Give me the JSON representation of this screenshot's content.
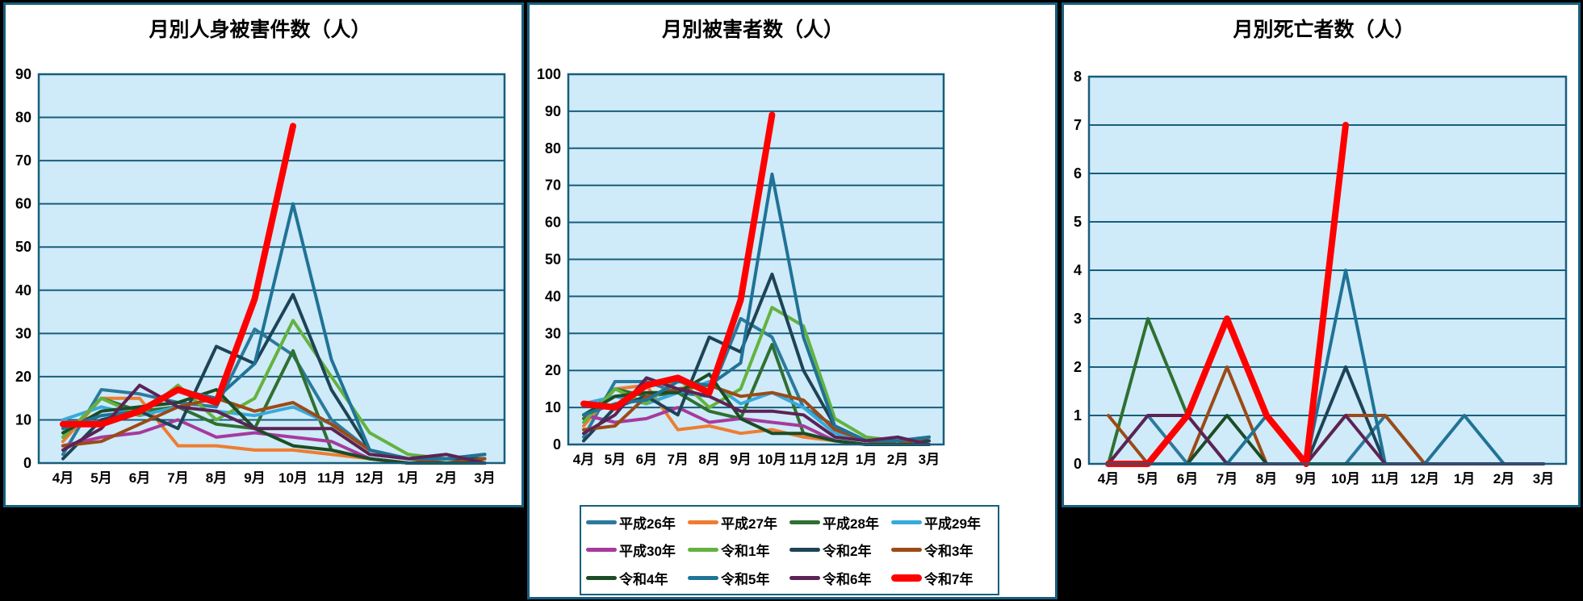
{
  "page": {
    "background_color": "#000000",
    "panel_color": "#FFFFFF",
    "panel_border_color": "#175E7C",
    "plot_background_color": "#CFEAF8",
    "gridline_color": "#175E7C"
  },
  "months": [
    "4月",
    "5月",
    "6月",
    "7月",
    "8月",
    "9月",
    "10月",
    "11月",
    "12月",
    "1月",
    "2月",
    "3月"
  ],
  "series_meta": [
    {
      "key": "h26",
      "label": "平成26年",
      "color": "#2B7A9D",
      "thick": false
    },
    {
      "key": "h27",
      "label": "平成27年",
      "color": "#ED7D31",
      "thick": false
    },
    {
      "key": "h28",
      "label": "平成28年",
      "color": "#2E7031",
      "thick": false
    },
    {
      "key": "h29",
      "label": "平成29年",
      "color": "#38A9DC",
      "thick": false
    },
    {
      "key": "h30",
      "label": "平成30年",
      "color": "#A63A9E",
      "thick": false
    },
    {
      "key": "r1",
      "label": "令和1年",
      "color": "#63B23F",
      "thick": false
    },
    {
      "key": "r2",
      "label": "令和2年",
      "color": "#1D4456",
      "thick": false
    },
    {
      "key": "r3",
      "label": "令和3年",
      "color": "#9C4A16",
      "thick": false
    },
    {
      "key": "r4",
      "label": "令和4年",
      "color": "#1C4C26",
      "thick": false
    },
    {
      "key": "r5",
      "label": "令和5年",
      "color": "#1F7396",
      "thick": false
    },
    {
      "key": "r6",
      "label": "令和6年",
      "color": "#5C2355",
      "thick": false
    },
    {
      "key": "r7",
      "label": "令和7年",
      "color": "#FF0000",
      "thick": true
    }
  ],
  "chart_data": [
    {
      "type": "line",
      "title": "月別人身被害件数（人）",
      "categories": [
        "4月",
        "5月",
        "6月",
        "7月",
        "8月",
        "9月",
        "10月",
        "11月",
        "12月",
        "1月",
        "2月",
        "3月"
      ],
      "ylim": [
        0,
        90
      ],
      "ystep": 10,
      "grid": true,
      "legend_position": "shared-bottom",
      "series": [
        {
          "name": "平成26年",
          "values": [
            2,
            17,
            16,
            14,
            13,
            31,
            25,
            10,
            3,
            1,
            1,
            2
          ]
        },
        {
          "name": "平成27年",
          "values": [
            5,
            15,
            15,
            4,
            4,
            3,
            3,
            2,
            1,
            0,
            0,
            0
          ]
        },
        {
          "name": "平成28年",
          "values": [
            6,
            15,
            12,
            13,
            9,
            8,
            26,
            3,
            1,
            0,
            0,
            0
          ]
        },
        {
          "name": "平成29年",
          "values": [
            10,
            13,
            11,
            13,
            12,
            11,
            13,
            9,
            3,
            1,
            0,
            1
          ]
        },
        {
          "name": "平成30年",
          "values": [
            4,
            6,
            7,
            10,
            6,
            7,
            6,
            5,
            1,
            0,
            0,
            0
          ]
        },
        {
          "name": "令和1年",
          "values": [
            6,
            15,
            11,
            18,
            10,
            15,
            33,
            20,
            7,
            2,
            1,
            1
          ]
        },
        {
          "name": "令和2年",
          "values": [
            1,
            10,
            12,
            8,
            27,
            23,
            39,
            17,
            3,
            1,
            1,
            1
          ]
        },
        {
          "name": "令和3年",
          "values": [
            4,
            5,
            9,
            13,
            15,
            12,
            14,
            9,
            3,
            1,
            0,
            1
          ]
        },
        {
          "name": "令和4年",
          "values": [
            7,
            12,
            13,
            14,
            17,
            8,
            4,
            3,
            1,
            0,
            0,
            0
          ]
        },
        {
          "name": "令和5年",
          "values": [
            8,
            11,
            12,
            17,
            15,
            23,
            60,
            24,
            3,
            1,
            1,
            2
          ]
        },
        {
          "name": "令和6年",
          "values": [
            3,
            8,
            18,
            13,
            12,
            8,
            8,
            8,
            2,
            1,
            2,
            0
          ]
        },
        {
          "name": "令和7年",
          "values": [
            9,
            9,
            12,
            17,
            14,
            38,
            78,
            null,
            null,
            null,
            null,
            null
          ]
        }
      ]
    },
    {
      "type": "line",
      "title": "月別被害者数（人）",
      "categories": [
        "4月",
        "5月",
        "6月",
        "7月",
        "8月",
        "9月",
        "10月",
        "11月",
        "12月",
        "1月",
        "2月",
        "3月"
      ],
      "ylim": [
        0,
        100
      ],
      "ystep": 10,
      "grid": true,
      "legend_position": "shared-bottom",
      "series": [
        {
          "name": "平成26年",
          "values": [
            2,
            17,
            17,
            14,
            13,
            34,
            29,
            10,
            5,
            1,
            1,
            2
          ]
        },
        {
          "name": "平成27年",
          "values": [
            5,
            15,
            16,
            4,
            5,
            3,
            4,
            2,
            1,
            0,
            0,
            1
          ]
        },
        {
          "name": "平成28年",
          "values": [
            7,
            15,
            13,
            14,
            9,
            7,
            27,
            3,
            1,
            0,
            0,
            0
          ]
        },
        {
          "name": "平成29年",
          "values": [
            11,
            13,
            11,
            14,
            17,
            11,
            14,
            10,
            3,
            1,
            0,
            1
          ]
        },
        {
          "name": "平成30年",
          "values": [
            8,
            6,
            7,
            10,
            6,
            7,
            6,
            5,
            1,
            0,
            0,
            0
          ]
        },
        {
          "name": "令和1年",
          "values": [
            6,
            15,
            11,
            18,
            10,
            15,
            37,
            32,
            7,
            2,
            1,
            1
          ]
        },
        {
          "name": "令和2年",
          "values": [
            1,
            10,
            13,
            8,
            29,
            25,
            46,
            20,
            5,
            1,
            1,
            1
          ]
        },
        {
          "name": "令和3年",
          "values": [
            4,
            5,
            13,
            15,
            16,
            13,
            14,
            12,
            4,
            1,
            0,
            2
          ]
        },
        {
          "name": "令和4年",
          "values": [
            8,
            13,
            14,
            14,
            19,
            7,
            3,
            3,
            1,
            0,
            0,
            0
          ]
        },
        {
          "name": "令和5年",
          "values": [
            8,
            11,
            12,
            17,
            16,
            22,
            73,
            29,
            5,
            1,
            1,
            2
          ]
        },
        {
          "name": "令和6年",
          "values": [
            3,
            8,
            18,
            15,
            13,
            9,
            9,
            8,
            2,
            1,
            2,
            0
          ]
        },
        {
          "name": "令和7年",
          "values": [
            11,
            10,
            16,
            18,
            14,
            39,
            89,
            null,
            null,
            null,
            null,
            null
          ]
        }
      ]
    },
    {
      "type": "line",
      "title": "月別死亡者数（人）",
      "categories": [
        "4月",
        "5月",
        "6月",
        "7月",
        "8月",
        "9月",
        "10月",
        "11月",
        "12月",
        "1月",
        "2月",
        "3月"
      ],
      "ylim": [
        0,
        8
      ],
      "ystep": 1,
      "grid": true,
      "legend_position": "shared-bottom",
      "series": [
        {
          "name": "平成26年",
          "values": [
            0,
            1,
            0,
            0,
            0,
            0,
            0,
            1,
            0,
            0,
            0,
            0
          ]
        },
        {
          "name": "平成27年",
          "values": [
            0,
            0,
            0,
            0,
            0,
            0,
            0,
            0,
            0,
            0,
            0,
            0
          ]
        },
        {
          "name": "平成28年",
          "values": [
            0,
            3,
            1,
            0,
            0,
            0,
            0,
            0,
            0,
            0,
            0,
            0
          ]
        },
        {
          "name": "平成29年",
          "values": [
            0,
            0,
            0,
            0,
            0,
            0,
            0,
            0,
            0,
            0,
            0,
            0
          ]
        },
        {
          "name": "平成30年",
          "values": [
            0,
            0,
            0,
            0,
            0,
            0,
            0,
            0,
            0,
            0,
            0,
            0
          ]
        },
        {
          "name": "令和1年",
          "values": [
            0,
            0,
            0,
            0,
            0,
            0,
            0,
            0,
            0,
            0,
            0,
            0
          ]
        },
        {
          "name": "令和2年",
          "values": [
            0,
            0,
            0,
            0,
            0,
            0,
            2,
            0,
            0,
            0,
            0,
            0
          ]
        },
        {
          "name": "令和3年",
          "values": [
            1,
            0,
            0,
            2,
            0,
            0,
            1,
            1,
            0,
            0,
            0,
            0
          ]
        },
        {
          "name": "令和4年",
          "values": [
            0,
            0,
            0,
            1,
            0,
            0,
            0,
            0,
            0,
            0,
            0,
            0
          ]
        },
        {
          "name": "令和5年",
          "values": [
            0,
            0,
            0,
            0,
            1,
            0,
            4,
            0,
            0,
            1,
            0,
            0
          ]
        },
        {
          "name": "令和6年",
          "values": [
            0,
            1,
            1,
            0,
            0,
            0,
            1,
            0,
            0,
            0,
            0,
            0
          ]
        },
        {
          "name": "令和7年",
          "values": [
            0,
            0,
            1,
            3,
            1,
            0,
            7,
            null,
            null,
            null,
            null,
            null
          ]
        }
      ]
    }
  ]
}
